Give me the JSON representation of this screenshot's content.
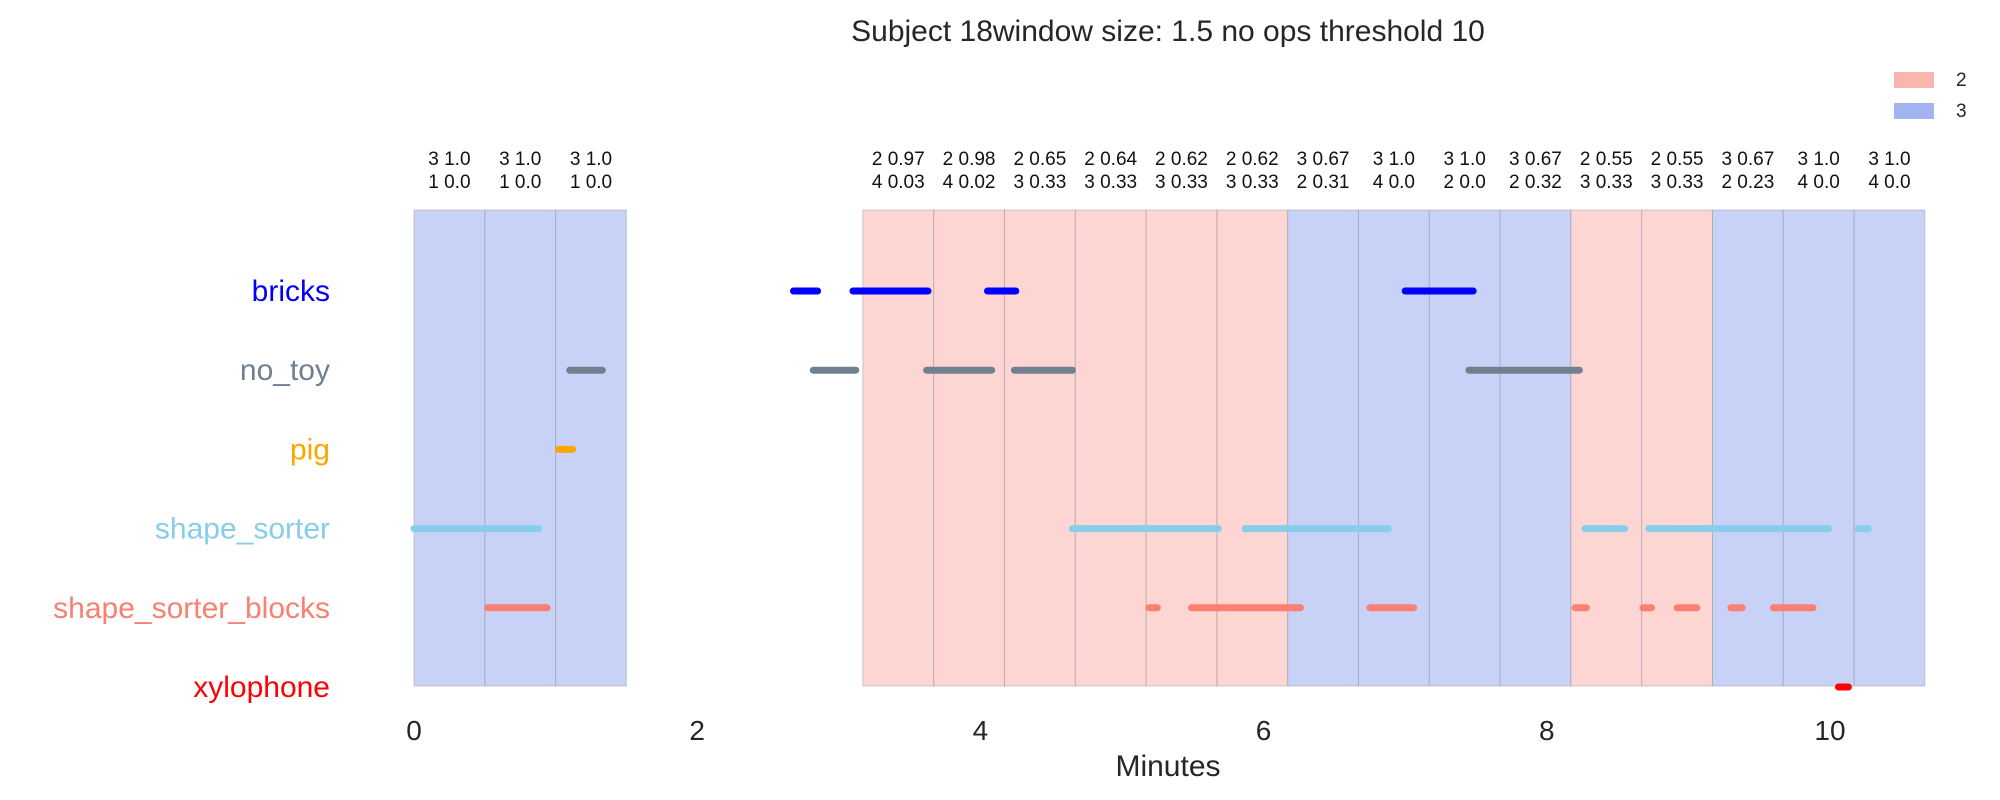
{
  "chart_data": {
    "type": "timeline",
    "title": "Subject 18window size: 1.5 no ops threshold 10",
    "xlabel": "Minutes",
    "xlim": [
      0,
      10.7
    ],
    "xticks": [
      0,
      2,
      4,
      6,
      8,
      10
    ],
    "legend": {
      "position": "top-right",
      "entries": [
        {
          "label": "2",
          "color": "#fbb4ae"
        },
        {
          "label": "3",
          "color": "#a1b4f0"
        }
      ]
    },
    "categories": [
      {
        "name": "bricks",
        "color": "#0000ff"
      },
      {
        "name": "no_toy",
        "color": "#708090"
      },
      {
        "name": "pig",
        "color": "#ffa500"
      },
      {
        "name": "shape_sorter",
        "color": "#87ceeb"
      },
      {
        "name": "shape_sorter_blocks",
        "color": "#fa8072"
      },
      {
        "name": "xylophone",
        "color": "#ff0000"
      }
    ],
    "windows": [
      {
        "start": 0.0,
        "end": 0.5,
        "state": "3",
        "ann1": "3 1.0",
        "ann2": "1 0.0"
      },
      {
        "start": 0.5,
        "end": 1.0,
        "state": "3",
        "ann1": "3 1.0",
        "ann2": "1 0.0"
      },
      {
        "start": 1.0,
        "end": 1.5,
        "state": "3",
        "ann1": "3 1.0",
        "ann2": "1 0.0"
      },
      {
        "start": 1.5,
        "end": 3.17,
        "state": "none",
        "ann1": "",
        "ann2": ""
      },
      {
        "start": 3.17,
        "end": 3.67,
        "state": "2",
        "ann1": "2 0.97",
        "ann2": "4 0.03"
      },
      {
        "start": 3.67,
        "end": 4.17,
        "state": "2",
        "ann1": "2 0.98",
        "ann2": "4 0.02"
      },
      {
        "start": 4.17,
        "end": 4.67,
        "state": "2",
        "ann1": "2 0.65",
        "ann2": "3 0.33"
      },
      {
        "start": 4.67,
        "end": 5.17,
        "state": "2",
        "ann1": "2 0.64",
        "ann2": "3 0.33"
      },
      {
        "start": 5.17,
        "end": 5.67,
        "state": "2",
        "ann1": "2 0.62",
        "ann2": "3 0.33"
      },
      {
        "start": 5.67,
        "end": 6.17,
        "state": "2",
        "ann1": "2 0.62",
        "ann2": "3 0.33"
      },
      {
        "start": 6.17,
        "end": 6.67,
        "state": "3",
        "ann1": "3 0.67",
        "ann2": "2 0.31"
      },
      {
        "start": 6.67,
        "end": 7.17,
        "state": "3",
        "ann1": "3 1.0",
        "ann2": "4 0.0"
      },
      {
        "start": 7.17,
        "end": 7.67,
        "state": "3",
        "ann1": "3 1.0",
        "ann2": "2 0.0"
      },
      {
        "start": 7.67,
        "end": 8.17,
        "state": "3",
        "ann1": "3 0.67",
        "ann2": "2 0.32"
      },
      {
        "start": 8.17,
        "end": 8.67,
        "state": "2",
        "ann1": "2 0.55",
        "ann2": "3 0.33"
      },
      {
        "start": 8.67,
        "end": 9.17,
        "state": "2",
        "ann1": "2 0.55",
        "ann2": "3 0.33"
      },
      {
        "start": 9.17,
        "end": 9.67,
        "state": "3",
        "ann1": "3 0.67",
        "ann2": "2 0.23"
      },
      {
        "start": 9.67,
        "end": 10.17,
        "state": "3",
        "ann1": "3 1.0",
        "ann2": "4 0.0"
      },
      {
        "start": 10.17,
        "end": 10.67,
        "state": "3",
        "ann1": "3 1.0",
        "ann2": "4 0.0"
      }
    ],
    "segments": [
      {
        "category": "bricks",
        "start": 2.68,
        "end": 2.85
      },
      {
        "category": "bricks",
        "start": 3.1,
        "end": 3.63
      },
      {
        "category": "bricks",
        "start": 4.05,
        "end": 4.25
      },
      {
        "category": "bricks",
        "start": 7.0,
        "end": 7.48
      },
      {
        "category": "no_toy",
        "start": 1.1,
        "end": 1.33
      },
      {
        "category": "no_toy",
        "start": 2.82,
        "end": 3.12
      },
      {
        "category": "no_toy",
        "start": 3.62,
        "end": 4.08
      },
      {
        "category": "no_toy",
        "start": 4.24,
        "end": 4.65
      },
      {
        "category": "no_toy",
        "start": 7.45,
        "end": 8.23
      },
      {
        "category": "pig",
        "start": 1.02,
        "end": 1.12
      },
      {
        "category": "shape_sorter",
        "start": 0.0,
        "end": 0.88
      },
      {
        "category": "shape_sorter",
        "start": 4.65,
        "end": 5.68
      },
      {
        "category": "shape_sorter",
        "start": 5.87,
        "end": 6.88
      },
      {
        "category": "shape_sorter",
        "start": 8.27,
        "end": 8.55
      },
      {
        "category": "shape_sorter",
        "start": 8.72,
        "end": 9.99
      },
      {
        "category": "shape_sorter",
        "start": 10.2,
        "end": 10.27
      },
      {
        "category": "shape_sorter_blocks",
        "start": 0.52,
        "end": 0.94
      },
      {
        "category": "shape_sorter_blocks",
        "start": 5.19,
        "end": 5.25
      },
      {
        "category": "shape_sorter_blocks",
        "start": 5.49,
        "end": 6.26
      },
      {
        "category": "shape_sorter_blocks",
        "start": 6.75,
        "end": 7.06
      },
      {
        "category": "shape_sorter_blocks",
        "start": 8.2,
        "end": 8.28
      },
      {
        "category": "shape_sorter_blocks",
        "start": 8.68,
        "end": 8.74
      },
      {
        "category": "shape_sorter_blocks",
        "start": 8.92,
        "end": 9.06
      },
      {
        "category": "shape_sorter_blocks",
        "start": 9.3,
        "end": 9.38
      },
      {
        "category": "shape_sorter_blocks",
        "start": 9.6,
        "end": 9.88
      },
      {
        "category": "xylophone",
        "start": 10.06,
        "end": 10.13
      }
    ]
  }
}
